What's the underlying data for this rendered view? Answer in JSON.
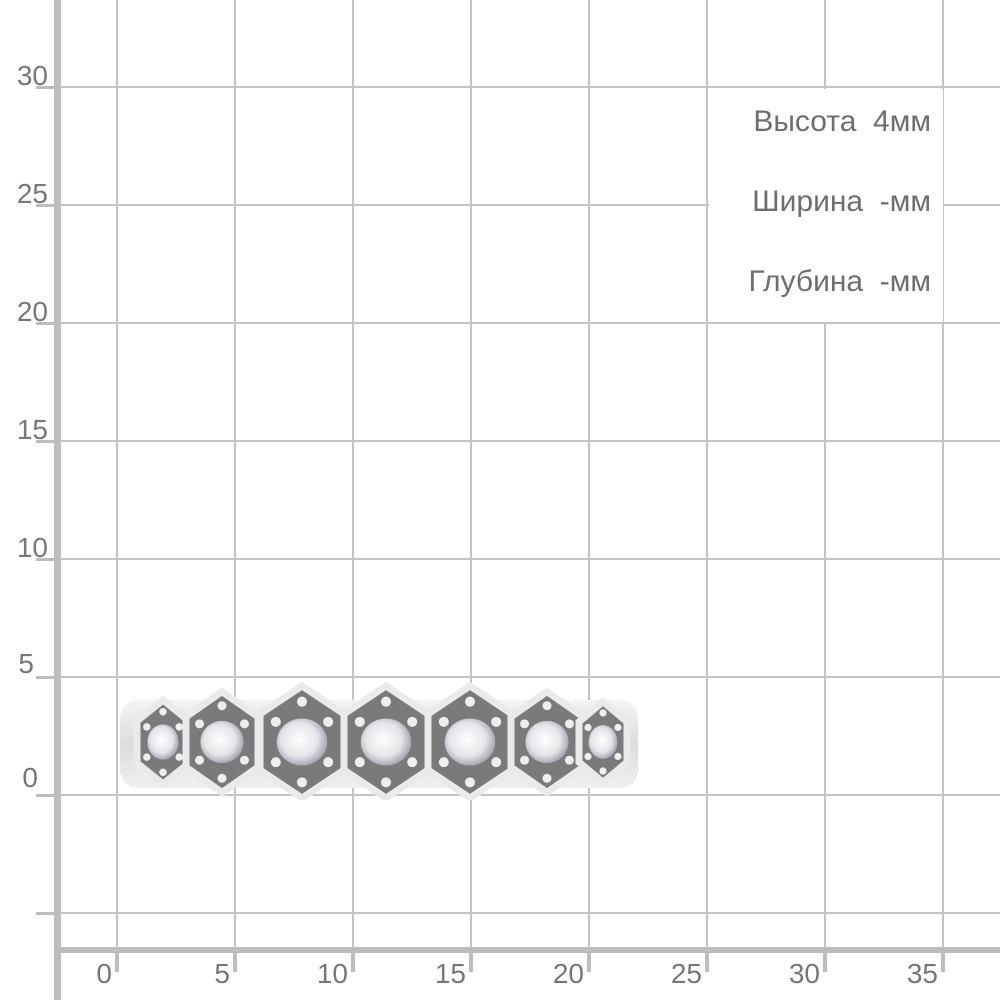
{
  "y_axis": {
    "labels": [
      "30",
      "25",
      "20",
      "15",
      "10",
      "5",
      "0"
    ]
  },
  "x_axis": {
    "labels": [
      "0",
      "5",
      "10",
      "15",
      "20",
      "25",
      "30",
      "35"
    ]
  },
  "dimensions": {
    "height": "Высота  4мм",
    "width": "Ширина  -мм",
    "depth": "Глубина  -мм"
  },
  "product": {
    "icon": "hexagon-stone-ring-image",
    "metal_color": "#e6e6e6",
    "stone_color": "#f2f2f6"
  }
}
